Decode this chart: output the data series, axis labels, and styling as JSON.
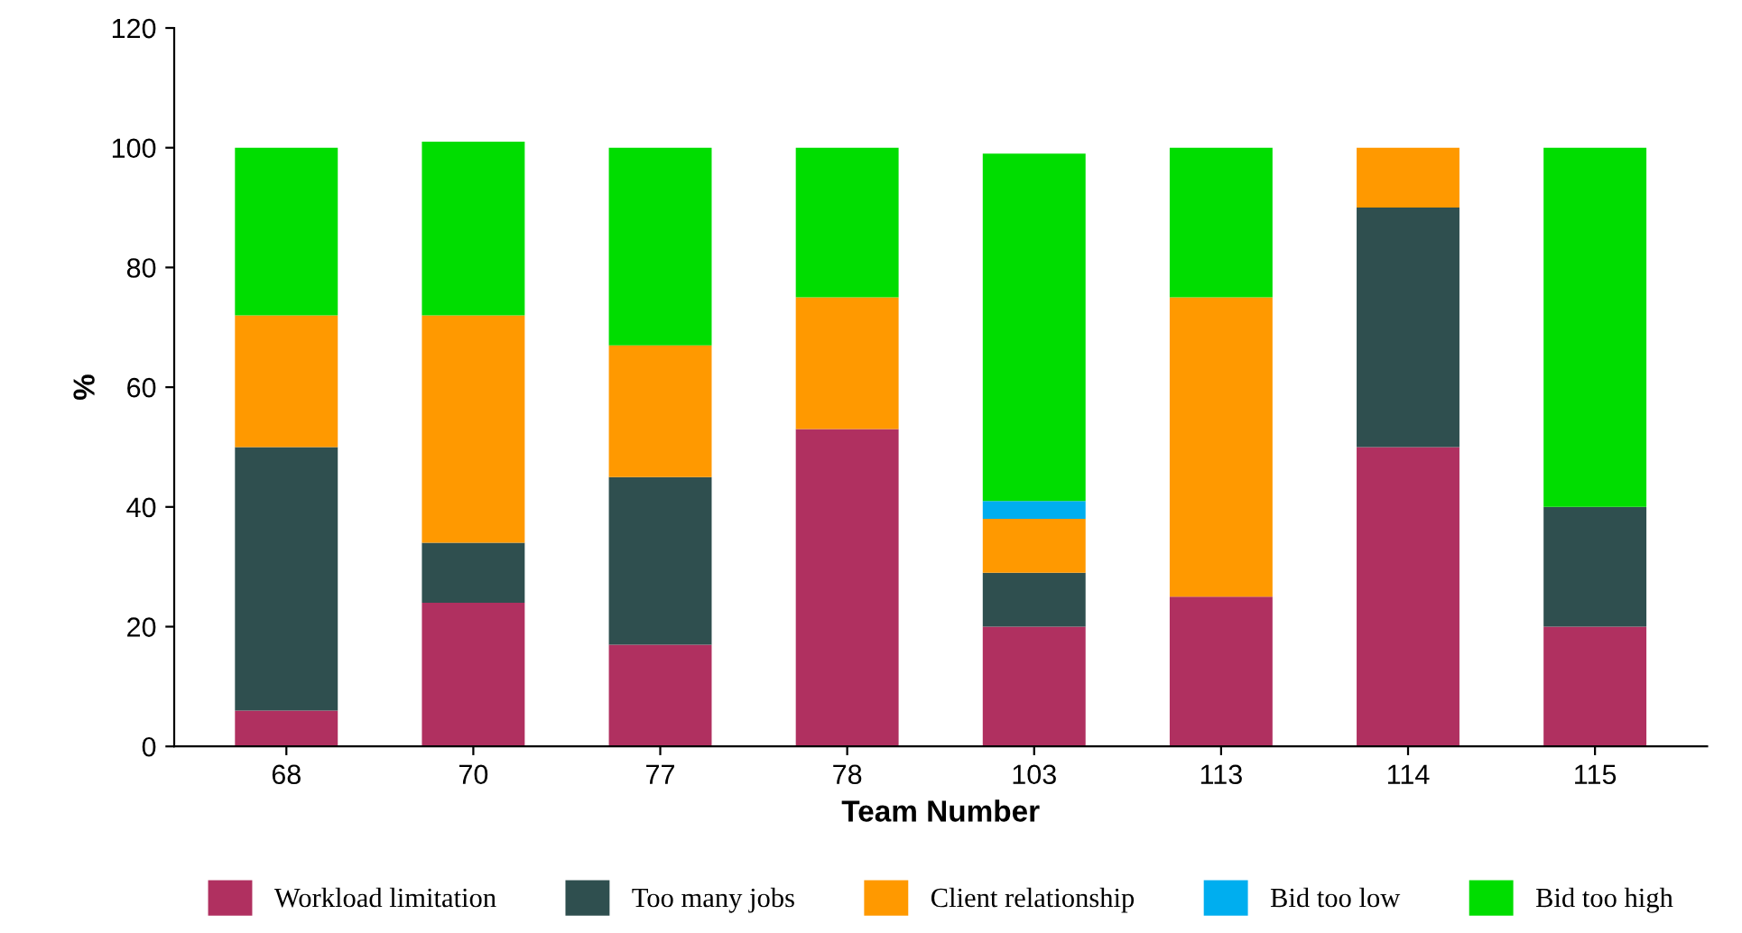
{
  "chart_data": {
    "type": "bar",
    "stacked": true,
    "xlabel": "Team Number",
    "ylabel": "%",
    "categories": [
      "68",
      "70",
      "77",
      "78",
      "103",
      "113",
      "114",
      "115"
    ],
    "series": [
      {
        "name": "Workload limitation",
        "color": "#b03060",
        "values": [
          6,
          24,
          17,
          53,
          20,
          25,
          50,
          20
        ]
      },
      {
        "name": "Too many jobs",
        "color": "#2f4f4f",
        "values": [
          44,
          10,
          28,
          0,
          9,
          0,
          40,
          20
        ]
      },
      {
        "name": "Client relationship",
        "color": "#ff9900",
        "values": [
          22,
          38,
          22,
          22,
          9,
          50,
          10,
          0
        ]
      },
      {
        "name": "Bid too low",
        "color": "#00aeef",
        "values": [
          0,
          0,
          0,
          0,
          3,
          0,
          0,
          0
        ]
      },
      {
        "name": "Bid too high",
        "color": "#00dd00",
        "values": [
          28,
          29,
          33,
          25,
          58,
          25,
          0,
          60
        ]
      }
    ],
    "ylim": [
      0,
      120
    ],
    "yticks": [
      0,
      20,
      40,
      60,
      80,
      100,
      120
    ],
    "grid": false,
    "legend": "bottom"
  }
}
